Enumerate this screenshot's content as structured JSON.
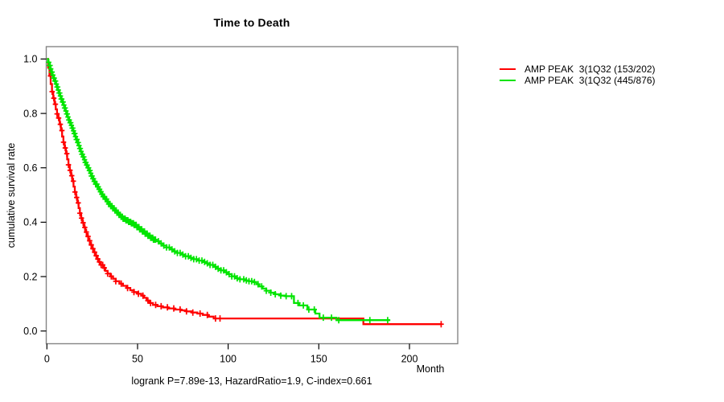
{
  "chart_data": {
    "type": "line",
    "subtype": "kaplan-meier-step-survival",
    "title": "Time to Death",
    "xlabel": "Month",
    "ylabel": "cumulative survival rate",
    "annotation": "logrank P=7.89e-13, HazardRatio=1.9, C-index=0.661",
    "x_ticks": [
      0,
      50,
      100,
      150,
      200
    ],
    "y_ticks": [
      0.0,
      0.2,
      0.4,
      0.6,
      0.8,
      1.0
    ],
    "xlim": [
      0,
      226
    ],
    "ylim": [
      0,
      1.05
    ],
    "grid": false,
    "legend_position": "right-outside",
    "series": [
      {
        "name": "AMP PEAK  3(1Q32 (153/202)",
        "color": "#ff0000",
        "end_time": 218,
        "points": [
          [
            0,
            1.0
          ],
          [
            0.7,
            0.968
          ],
          [
            1.4,
            0.938
          ],
          [
            2.1,
            0.908
          ],
          [
            2.8,
            0.88
          ],
          [
            3.5,
            0.856
          ],
          [
            4.2,
            0.834
          ],
          [
            4.9,
            0.815
          ],
          [
            5.6,
            0.798
          ],
          [
            6.3,
            0.783
          ],
          [
            7,
            0.76
          ],
          [
            7.7,
            0.737
          ],
          [
            8.4,
            0.715
          ],
          [
            9.1,
            0.694
          ],
          [
            9.8,
            0.673
          ],
          [
            10.5,
            0.652
          ],
          [
            11.2,
            0.631
          ],
          [
            11.9,
            0.611
          ],
          [
            12.6,
            0.591
          ],
          [
            13.3,
            0.571
          ],
          [
            14,
            0.551
          ],
          [
            14.7,
            0.531
          ],
          [
            15.4,
            0.511
          ],
          [
            16.1,
            0.491
          ],
          [
            16.8,
            0.471
          ],
          [
            17.5,
            0.452
          ],
          [
            18.2,
            0.433
          ],
          [
            18.9,
            0.415
          ],
          [
            19.6,
            0.398
          ],
          [
            20.4,
            0.381
          ],
          [
            21.2,
            0.364
          ],
          [
            22,
            0.348
          ],
          [
            22.8,
            0.332
          ],
          [
            23.7,
            0.317
          ],
          [
            24.6,
            0.303
          ],
          [
            25.6,
            0.29
          ],
          [
            26.6,
            0.277
          ],
          [
            27.6,
            0.265
          ],
          [
            28.7,
            0.254
          ],
          [
            29.8,
            0.243
          ],
          [
            31,
            0.232
          ],
          [
            32.2,
            0.221
          ],
          [
            33.5,
            0.211
          ],
          [
            35,
            0.201
          ],
          [
            36.5,
            0.192
          ],
          [
            38,
            0.183
          ],
          [
            40,
            0.174
          ],
          [
            42,
            0.166
          ],
          [
            44,
            0.158
          ],
          [
            46,
            0.15
          ],
          [
            48,
            0.143
          ],
          [
            50,
            0.137
          ],
          [
            52,
            0.13
          ],
          [
            53.5,
            0.122
          ],
          [
            55,
            0.112
          ],
          [
            56.5,
            0.103
          ],
          [
            58.5,
            0.096
          ],
          [
            61,
            0.091
          ],
          [
            64,
            0.087
          ],
          [
            67,
            0.083
          ],
          [
            70.5,
            0.079
          ],
          [
            74,
            0.076
          ],
          [
            77,
            0.072
          ],
          [
            80,
            0.068
          ],
          [
            83,
            0.064
          ],
          [
            86,
            0.059
          ],
          [
            89,
            0.053
          ],
          [
            92,
            0.046
          ],
          [
            174.6,
            0.025
          ]
        ],
        "censor_ticks_dense": {
          "start": 2,
          "end": 32,
          "step": 0.9
        },
        "censor_ticks": [
          33.5,
          35.5,
          38,
          41,
          44.5,
          48,
          50.5,
          53,
          55.7,
          57.2,
          60,
          63,
          66.5,
          70,
          73.5,
          77,
          80.5,
          84.5,
          88.5,
          93,
          95.5,
          217.5
        ]
      },
      {
        "name": "AMP PEAK  3(1Q32 (445/876)",
        "color": "#00e400",
        "end_time": 189.3,
        "points": [
          [
            0,
            1.0
          ],
          [
            0.6,
            0.988
          ],
          [
            1.2,
            0.976
          ],
          [
            1.8,
            0.964
          ],
          [
            2.4,
            0.952
          ],
          [
            3,
            0.941
          ],
          [
            3.6,
            0.93
          ],
          [
            4.2,
            0.919
          ],
          [
            4.8,
            0.908
          ],
          [
            5.4,
            0.897
          ],
          [
            6,
            0.886
          ],
          [
            6.6,
            0.875
          ],
          [
            7.2,
            0.864
          ],
          [
            7.8,
            0.853
          ],
          [
            8.4,
            0.842
          ],
          [
            9,
            0.831
          ],
          [
            9.6,
            0.82
          ],
          [
            10.2,
            0.809
          ],
          [
            10.8,
            0.798
          ],
          [
            11.4,
            0.787
          ],
          [
            12,
            0.776
          ],
          [
            12.6,
            0.766
          ],
          [
            13.2,
            0.756
          ],
          [
            13.8,
            0.746
          ],
          [
            14.4,
            0.736
          ],
          [
            15,
            0.726
          ],
          [
            15.6,
            0.715
          ],
          [
            16.2,
            0.704
          ],
          [
            16.8,
            0.693
          ],
          [
            17.4,
            0.682
          ],
          [
            18,
            0.671
          ],
          [
            18.6,
            0.66
          ],
          [
            19.2,
            0.65
          ],
          [
            19.8,
            0.64
          ],
          [
            20.4,
            0.63
          ],
          [
            21,
            0.62
          ],
          [
            21.7,
            0.61
          ],
          [
            22.4,
            0.6
          ],
          [
            23.1,
            0.59
          ],
          [
            23.8,
            0.58
          ],
          [
            24.5,
            0.57
          ],
          [
            25.2,
            0.56
          ],
          [
            26,
            0.55
          ],
          [
            26.8,
            0.54
          ],
          [
            27.6,
            0.53
          ],
          [
            28.4,
            0.521
          ],
          [
            29.2,
            0.512
          ],
          [
            30,
            0.503
          ],
          [
            31,
            0.494
          ],
          [
            32,
            0.485
          ],
          [
            33,
            0.476
          ],
          [
            34,
            0.467
          ],
          [
            35,
            0.459
          ],
          [
            36,
            0.451
          ],
          [
            37.2,
            0.443
          ],
          [
            38.4,
            0.435
          ],
          [
            39.6,
            0.427
          ],
          [
            40.8,
            0.42
          ],
          [
            42,
            0.413
          ],
          [
            43.4,
            0.407
          ],
          [
            44.8,
            0.401
          ],
          [
            46.4,
            0.396
          ],
          [
            48,
            0.39
          ],
          [
            49.5,
            0.382
          ],
          [
            51,
            0.374
          ],
          [
            52.5,
            0.366
          ],
          [
            54,
            0.358
          ],
          [
            55.5,
            0.35
          ],
          [
            57,
            0.343
          ],
          [
            58.5,
            0.336
          ],
          [
            60,
            0.33
          ],
          [
            62,
            0.322
          ],
          [
            64,
            0.314
          ],
          [
            66,
            0.307
          ],
          [
            68,
            0.3
          ],
          [
            70,
            0.293
          ],
          [
            72,
            0.287
          ],
          [
            74,
            0.281
          ],
          [
            76,
            0.275
          ],
          [
            78.5,
            0.269
          ],
          [
            81,
            0.264
          ],
          [
            83.5,
            0.259
          ],
          [
            86,
            0.254
          ],
          [
            88,
            0.249
          ],
          [
            90,
            0.243
          ],
          [
            92,
            0.236
          ],
          [
            94,
            0.229
          ],
          [
            96,
            0.223
          ],
          [
            98,
            0.216
          ],
          [
            100,
            0.209
          ],
          [
            102,
            0.201
          ],
          [
            104,
            0.194
          ],
          [
            106.5,
            0.19
          ],
          [
            109,
            0.186
          ],
          [
            111.5,
            0.183
          ],
          [
            114,
            0.18
          ],
          [
            115.5,
            0.172
          ],
          [
            117,
            0.164
          ],
          [
            119,
            0.156
          ],
          [
            121,
            0.148
          ],
          [
            123.5,
            0.141
          ],
          [
            126,
            0.135
          ],
          [
            129,
            0.13
          ],
          [
            131.5,
            0.128
          ],
          [
            136.3,
            0.103
          ],
          [
            139.2,
            0.094
          ],
          [
            143.7,
            0.079
          ],
          [
            148.1,
            0.064
          ],
          [
            150.4,
            0.049
          ],
          [
            159.7,
            0.04
          ]
        ],
        "censor_ticks_dense": {
          "start": 1,
          "end": 60,
          "step": 0.38
        },
        "censor_ticks": [
          61.5,
          63,
          64.5,
          66,
          67.5,
          69,
          70.5,
          72,
          73.5,
          75,
          76.5,
          78,
          79.5,
          81,
          82.5,
          84,
          85.5,
          87,
          88.5,
          90,
          91.5,
          93,
          94.5,
          96,
          97.5,
          99,
          100.5,
          102,
          103.5,
          105,
          106.5,
          108.6,
          110,
          111.5,
          113,
          114.5,
          116.5,
          118.5,
          121,
          123.5,
          126,
          129,
          132,
          135,
          138.5,
          141.5,
          144.5,
          147.5,
          152.5,
          157,
          161,
          178.2,
          188
        ]
      }
    ]
  },
  "style": {
    "box_color": "#858585",
    "tick_color": "#000000"
  }
}
